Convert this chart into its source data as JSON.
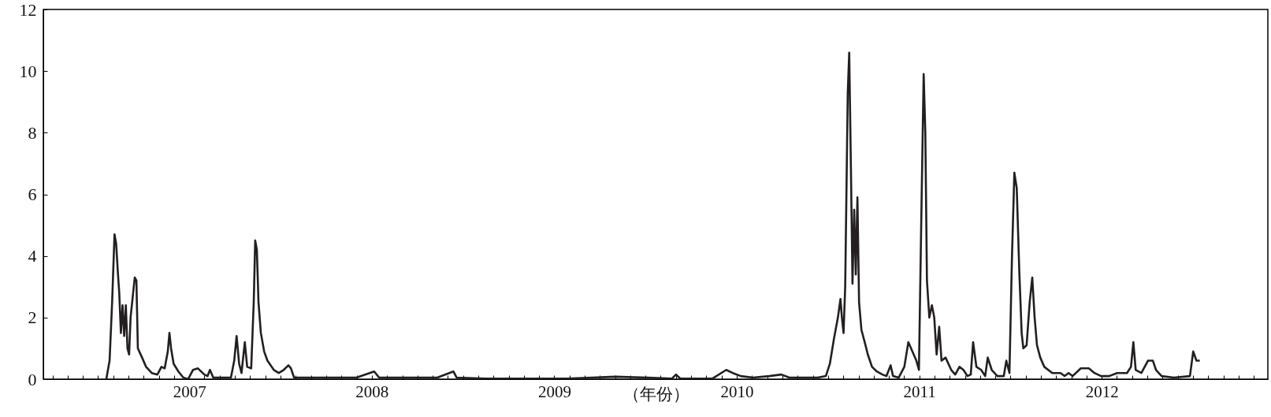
{
  "chart_data": {
    "type": "line",
    "xlabel": "（年份）",
    "x": [
      2006.545,
      2006.563,
      2006.577,
      2006.59,
      2006.599,
      2006.608,
      2006.616,
      2006.625,
      2006.634,
      2006.643,
      2006.652,
      2006.661,
      2006.67,
      2006.678,
      2006.692,
      2006.701,
      2006.71,
      2006.718,
      2006.741,
      2006.763,
      2006.794,
      2006.825,
      2006.847,
      2006.865,
      2006.882,
      2006.891,
      2006.9,
      2006.914,
      2006.94,
      2006.967,
      2006.993,
      2007.02,
      2007.047,
      2007.082,
      2007.1,
      2007.113,
      2007.131,
      2007.162,
      2007.228,
      2007.246,
      2007.259,
      2007.273,
      2007.286,
      2007.304,
      2007.317,
      2007.339,
      2007.353,
      2007.361,
      2007.37,
      2007.379,
      2007.392,
      2007.41,
      2007.428,
      2007.463,
      2007.49,
      2007.517,
      2007.543,
      2007.557,
      2007.574,
      2007.65,
      2007.738,
      2007.827,
      2007.916,
      2008.013,
      2008.04,
      2008.182,
      2008.359,
      2008.447,
      2008.465,
      2008.625,
      2009.068,
      2009.335,
      2009.512,
      2009.645,
      2009.667,
      2009.69,
      2009.867,
      2009.942,
      2009.978,
      2010.022,
      2010.089,
      2010.177,
      2010.244,
      2010.288,
      2010.443,
      2010.488,
      2010.51,
      2010.532,
      2010.554,
      2010.568,
      2010.576,
      2010.585,
      2010.594,
      2010.608,
      2010.616,
      2010.625,
      2010.634,
      2010.643,
      2010.652,
      2010.661,
      2010.67,
      2010.683,
      2010.701,
      2010.718,
      2010.741,
      2010.767,
      2010.798,
      2010.82,
      2010.843,
      2010.856,
      2010.887,
      2010.918,
      2010.94,
      2010.962,
      2010.984,
      2010.998,
      2011.011,
      2011.024,
      2011.033,
      2011.042,
      2011.055,
      2011.069,
      2011.082,
      2011.095,
      2011.109,
      2011.122,
      2011.144,
      2011.175,
      2011.197,
      2011.22,
      2011.242,
      2011.264,
      2011.282,
      2011.295,
      2011.313,
      2011.339,
      2011.361,
      2011.375,
      2011.397,
      2011.428,
      2011.463,
      2011.477,
      2011.494,
      2011.508,
      2011.521,
      2011.534,
      2011.548,
      2011.561,
      2011.57,
      2011.588,
      2011.605,
      2011.619,
      2011.632,
      2011.645,
      2011.663,
      2011.685,
      2011.729,
      2011.774,
      2011.796,
      2011.818,
      2011.84,
      2011.885,
      2011.929,
      2011.96,
      2011.996,
      2012.04,
      2012.084,
      2012.138,
      2012.16,
      2012.173,
      2012.186,
      2012.217,
      2012.253,
      2012.28,
      2012.297,
      2012.328,
      2012.395,
      2012.483,
      2012.501,
      2012.519,
      2012.537
    ],
    "series": [
      {
        "color": "#231f20",
        "values": [
          0,
          0.6,
          2.5,
          4.7,
          4.4,
          3.5,
          2.8,
          1.5,
          2.4,
          1.4,
          2.4,
          1.0,
          0.8,
          2.0,
          2.8,
          3.3,
          3.2,
          1.0,
          0.7,
          0.4,
          0.2,
          0.15,
          0.4,
          0.35,
          0.9,
          1.5,
          1.0,
          0.5,
          0.25,
          0.05,
          0,
          0.3,
          0.35,
          0.15,
          0.1,
          0.3,
          0.05,
          0.05,
          0.05,
          0.6,
          1.4,
          0.5,
          0.2,
          1.2,
          0.4,
          0.35,
          2.5,
          4.5,
          4.2,
          2.5,
          1.5,
          0.9,
          0.6,
          0.3,
          0.2,
          0.3,
          0.45,
          0.35,
          0.05,
          0.05,
          0.05,
          0.05,
          0.05,
          0.25,
          0.05,
          0.05,
          0.05,
          0.25,
          0.05,
          0.02,
          0.02,
          0.08,
          0.05,
          0.02,
          0.15,
          0.02,
          0.02,
          0.3,
          0.2,
          0.1,
          0.05,
          0.1,
          0.15,
          0.05,
          0.05,
          0.1,
          0.5,
          1.3,
          2.0,
          2.6,
          2.0,
          1.5,
          3.0,
          9.3,
          10.6,
          7.0,
          3.1,
          5.5,
          3.4,
          5.9,
          2.5,
          1.6,
          1.2,
          0.8,
          0.4,
          0.25,
          0.15,
          0.1,
          0.45,
          0.1,
          0.05,
          0.4,
          1.2,
          0.9,
          0.6,
          0.3,
          5.2,
          9.9,
          8.0,
          3.2,
          2.0,
          2.4,
          2.0,
          0.8,
          1.7,
          0.6,
          0.7,
          0.3,
          0.15,
          0.4,
          0.3,
          0.1,
          0.15,
          1.2,
          0.4,
          0.3,
          0.1,
          0.7,
          0.3,
          0.1,
          0.1,
          0.6,
          0.2,
          4.0,
          6.7,
          6.2,
          3.5,
          1.5,
          1.0,
          1.1,
          2.5,
          3.3,
          2.0,
          1.1,
          0.7,
          0.4,
          0.2,
          0.2,
          0.1,
          0.2,
          0.1,
          0.35,
          0.35,
          0.2,
          0.1,
          0.1,
          0.2,
          0.2,
          0.4,
          1.2,
          0.3,
          0.2,
          0.6,
          0.6,
          0.3,
          0.1,
          0.05,
          0.1,
          0.9,
          0.6,
          0.6
        ]
      }
    ],
    "xlim": [
      2006.2,
      2012.91
    ],
    "xticks": [
      {
        "value": 2006.25,
        "label": null
      },
      {
        "value": 2006.333,
        "label": null
      },
      {
        "value": 2006.417,
        "label": null
      },
      {
        "value": 2006.5,
        "label": null
      },
      {
        "value": 2006.583,
        "label": null
      },
      {
        "value": 2006.667,
        "label": null
      },
      {
        "value": 2006.75,
        "label": null
      },
      {
        "value": 2006.833,
        "label": null
      },
      {
        "value": 2006.917,
        "label": null
      },
      2007,
      {
        "value": 2007.083,
        "label": null
      },
      {
        "value": 2007.167,
        "label": null
      },
      {
        "value": 2007.25,
        "label": null
      },
      {
        "value": 2007.333,
        "label": null
      },
      {
        "value": 2007.417,
        "label": null
      },
      {
        "value": 2007.5,
        "label": null
      },
      {
        "value": 2007.583,
        "label": null
      },
      {
        "value": 2007.667,
        "label": null
      },
      {
        "value": 2007.75,
        "label": null
      },
      {
        "value": 2007.833,
        "label": null
      },
      {
        "value": 2007.917,
        "label": null
      },
      2008,
      {
        "value": 2008.083,
        "label": null
      },
      {
        "value": 2008.167,
        "label": null
      },
      {
        "value": 2008.25,
        "label": null
      },
      {
        "value": 2008.333,
        "label": null
      },
      {
        "value": 2008.417,
        "label": null
      },
      {
        "value": 2008.5,
        "label": null
      },
      {
        "value": 2008.583,
        "label": null
      },
      {
        "value": 2008.667,
        "label": null
      },
      {
        "value": 2008.75,
        "label": null
      },
      {
        "value": 2008.833,
        "label": null
      },
      {
        "value": 2008.917,
        "label": null
      },
      2009,
      {
        "value": 2009.083,
        "label": null
      },
      {
        "value": 2009.167,
        "label": null
      },
      {
        "value": 2009.25,
        "label": null
      },
      {
        "value": 2009.333,
        "label": null
      },
      {
        "value": 2009.417,
        "label": null
      },
      {
        "value": 2009.5,
        "label": null
      },
      {
        "value": 2009.583,
        "label": null
      },
      {
        "value": 2009.667,
        "label": null
      },
      {
        "value": 2009.75,
        "label": null
      },
      {
        "value": 2009.833,
        "label": null
      },
      {
        "value": 2009.917,
        "label": null
      },
      2010,
      {
        "value": 2010.083,
        "label": null
      },
      {
        "value": 2010.167,
        "label": null
      },
      {
        "value": 2010.25,
        "label": null
      },
      {
        "value": 2010.333,
        "label": null
      },
      {
        "value": 2010.417,
        "label": null
      },
      {
        "value": 2010.5,
        "label": null
      },
      {
        "value": 2010.583,
        "label": null
      },
      {
        "value": 2010.667,
        "label": null
      },
      {
        "value": 2010.75,
        "label": null
      },
      {
        "value": 2010.833,
        "label": null
      },
      {
        "value": 2010.917,
        "label": null
      },
      2011,
      {
        "value": 2011.083,
        "label": null
      },
      {
        "value": 2011.167,
        "label": null
      },
      {
        "value": 2011.25,
        "label": null
      },
      {
        "value": 2011.333,
        "label": null
      },
      {
        "value": 2011.417,
        "label": null
      },
      {
        "value": 2011.5,
        "label": null
      },
      {
        "value": 2011.583,
        "label": null
      },
      {
        "value": 2011.667,
        "label": null
      },
      {
        "value": 2011.75,
        "label": null
      },
      {
        "value": 2011.833,
        "label": null
      },
      {
        "value": 2011.917,
        "label": null
      },
      2012,
      {
        "value": 2012.083,
        "label": null
      },
      {
        "value": 2012.167,
        "label": null
      },
      {
        "value": 2012.25,
        "label": null
      },
      {
        "value": 2012.333,
        "label": null
      },
      {
        "value": 2012.417,
        "label": null
      },
      {
        "value": 2012.5,
        "label": null
      },
      {
        "value": 2012.583,
        "label": null
      },
      {
        "value": 2012.667,
        "label": null
      },
      {
        "value": 2012.75,
        "label": null
      },
      {
        "value": 2012.833,
        "label": null
      }
    ],
    "ylim": [
      0,
      12
    ],
    "yticks": [
      0,
      2,
      4,
      6,
      8,
      10,
      12
    ],
    "grid": false,
    "marker": "none",
    "line_style": "solid"
  }
}
